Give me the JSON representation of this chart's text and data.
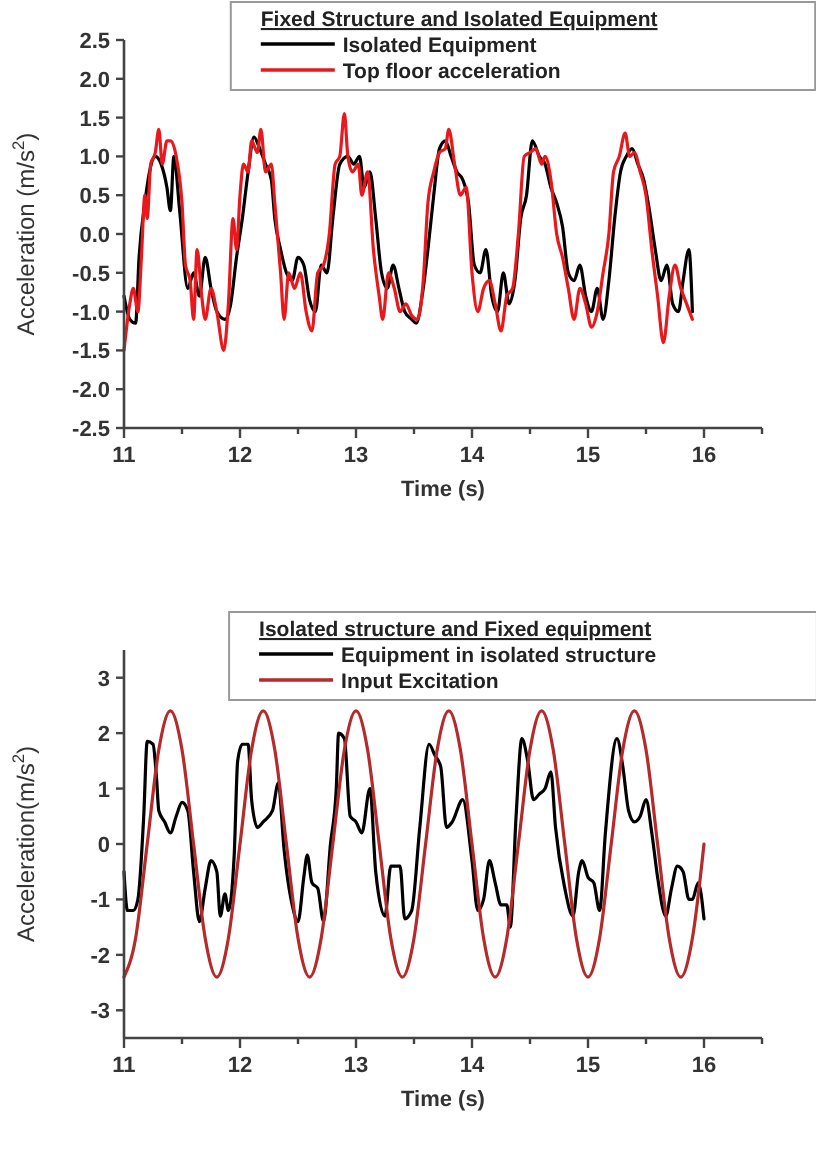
{
  "chart_data": [
    {
      "type": "line",
      "xlabel": "Time (s)",
      "ylabel": "Acceleration (m/s$^{2}$)",
      "legend_title": "Fixed Structure and Isolated Equipment",
      "legend": "top",
      "grid": false,
      "xlim": [
        11,
        16.5
      ],
      "xticks": [
        11,
        {
          "value": 11.5,
          "label": null
        },
        12,
        {
          "value": 12.5,
          "label": null
        },
        13,
        {
          "value": 13.5,
          "label": null
        },
        14,
        {
          "value": 14.5,
          "label": null
        },
        15,
        {
          "value": 15.5,
          "label": null
        },
        16,
        {
          "value": 16.5,
          "label": null
        }
      ],
      "ylim": [
        -2.5,
        2.5
      ],
      "yticks": [
        -2.5,
        {
          "value": -2,
          "label": "-2.0"
        },
        -1.5,
        {
          "value": -1,
          "label": "-1.0"
        },
        -0.5,
        {
          "value": 0,
          "label": "0.0"
        },
        0.5,
        {
          "value": 1,
          "label": "1.0"
        },
        1.5,
        {
          "value": 2,
          "label": "2.0"
        },
        2.5
      ],
      "series": [
        {
          "name": "Isolated Equipment",
          "color": "#000000",
          "x": [
            11.0,
            11.05,
            11.1,
            11.13,
            11.18,
            11.22,
            11.27,
            11.32,
            11.37,
            11.4,
            11.43,
            11.48,
            11.55,
            11.6,
            11.65,
            11.7,
            11.75,
            11.8,
            11.87,
            11.92,
            11.97,
            12.02,
            12.07,
            12.12,
            12.17,
            12.22,
            12.27,
            12.3,
            12.35,
            12.4,
            12.45,
            12.5,
            12.55,
            12.6,
            12.65,
            12.7,
            12.75,
            12.8,
            12.86,
            12.93,
            12.98,
            13.03,
            13.07,
            13.12,
            13.17,
            13.22,
            13.27,
            13.32,
            13.37,
            13.42,
            13.48,
            13.52,
            13.57,
            13.62,
            13.67,
            13.72,
            13.77,
            13.82,
            13.87,
            13.92,
            13.97,
            14.02,
            14.07,
            14.12,
            14.17,
            14.22,
            14.27,
            14.32,
            14.37,
            14.42,
            14.47,
            14.52,
            14.58,
            14.63,
            14.68,
            14.73,
            14.78,
            14.83,
            14.88,
            14.93,
            14.98,
            15.03,
            15.08,
            15.13,
            15.18,
            15.23,
            15.28,
            15.33,
            15.38,
            15.43,
            15.48,
            15.53,
            15.58,
            15.63,
            15.68,
            15.73,
            15.78,
            15.82,
            15.87,
            15.9
          ],
          "values": [
            -0.8,
            -1.1,
            -1.15,
            -0.3,
            0.4,
            0.8,
            1.0,
            0.9,
            0.6,
            0.3,
            1.0,
            0.3,
            -0.7,
            -0.5,
            -0.8,
            -0.3,
            -0.7,
            -1.0,
            -1.1,
            -0.9,
            -0.3,
            0.2,
            0.8,
            1.25,
            1.1,
            0.9,
            0.7,
            0.2,
            -0.2,
            -0.5,
            -0.6,
            -0.3,
            -0.4,
            -0.85,
            -1.0,
            -0.4,
            -0.5,
            0.2,
            0.9,
            1.0,
            0.9,
            1.0,
            0.6,
            0.8,
            0.2,
            -0.5,
            -0.7,
            -0.4,
            -0.7,
            -1.0,
            -1.1,
            -1.15,
            -0.8,
            -0.2,
            0.5,
            1.1,
            1.2,
            1.0,
            0.8,
            0.7,
            0.4,
            -0.4,
            -0.5,
            -0.2,
            -0.8,
            -1.0,
            -0.5,
            -0.9,
            -0.6,
            0.2,
            0.5,
            1.2,
            1.0,
            0.9,
            0.6,
            0.4,
            0.1,
            -0.5,
            -0.6,
            -0.4,
            -0.8,
            -1.0,
            -0.7,
            -1.1,
            -0.6,
            0.2,
            0.8,
            1.0,
            1.1,
            0.9,
            0.7,
            0.3,
            -0.2,
            -0.6,
            -0.4,
            -0.9,
            -1.0,
            -0.6,
            -0.2,
            -1.0
          ]
        },
        {
          "name": "Top floor acceleration",
          "color": "#e8191c",
          "x": [
            11.0,
            11.05,
            11.08,
            11.12,
            11.15,
            11.18,
            11.2,
            11.23,
            11.27,
            11.3,
            11.33,
            11.37,
            11.4,
            11.45,
            11.5,
            11.53,
            11.57,
            11.6,
            11.63,
            11.67,
            11.7,
            11.75,
            11.8,
            11.86,
            11.9,
            11.94,
            11.97,
            12.0,
            12.03,
            12.07,
            12.1,
            12.15,
            12.18,
            12.22,
            12.27,
            12.3,
            12.35,
            12.38,
            12.42,
            12.47,
            12.52,
            12.57,
            12.62,
            12.67,
            12.72,
            12.77,
            12.82,
            12.86,
            12.9,
            12.93,
            12.97,
            13.02,
            13.05,
            13.1,
            13.15,
            13.2,
            13.23,
            13.28,
            13.33,
            13.38,
            13.43,
            13.48,
            13.53,
            13.58,
            13.62,
            13.67,
            13.72,
            13.77,
            13.8,
            13.85,
            13.9,
            13.95,
            14.0,
            14.05,
            14.1,
            14.15,
            14.2,
            14.25,
            14.3,
            14.35,
            14.4,
            14.45,
            14.5,
            14.55,
            14.6,
            14.63,
            14.68,
            14.73,
            14.78,
            14.83,
            14.88,
            14.93,
            14.98,
            15.03,
            15.08,
            15.13,
            15.18,
            15.22,
            15.27,
            15.32,
            15.36,
            15.4,
            15.45,
            15.5,
            15.55,
            15.6,
            15.65,
            15.7,
            15.75,
            15.8,
            15.85,
            15.9
          ],
          "values": [
            -1.5,
            -0.9,
            -0.7,
            -1.0,
            -0.3,
            0.5,
            0.2,
            0.9,
            1.05,
            1.35,
            0.9,
            1.2,
            1.2,
            1.0,
            0.4,
            -0.4,
            -0.6,
            -1.1,
            -0.2,
            -0.8,
            -1.1,
            -0.7,
            -1.0,
            -1.5,
            -0.9,
            0.2,
            -0.2,
            0.5,
            0.9,
            0.8,
            1.2,
            1.05,
            1.35,
            0.8,
            0.9,
            0.4,
            -0.5,
            -1.1,
            -0.5,
            -0.7,
            -0.5,
            -1.0,
            -1.25,
            -0.5,
            -0.4,
            0.0,
            0.9,
            1.0,
            1.55,
            1.0,
            0.8,
            0.9,
            0.5,
            0.8,
            -0.2,
            -0.8,
            -1.1,
            -0.5,
            -0.7,
            -1.0,
            -0.9,
            -1.05,
            -1.1,
            -0.6,
            0.4,
            0.8,
            1.05,
            1.1,
            1.35,
            0.9,
            0.5,
            0.6,
            -0.5,
            -1.0,
            -0.7,
            -0.6,
            -0.9,
            -1.25,
            -0.8,
            -0.7,
            0.0,
            1.0,
            1.05,
            1.1,
            0.9,
            1.0,
            0.7,
            0.0,
            -0.3,
            -0.7,
            -1.1,
            -0.7,
            -0.9,
            -1.2,
            -1.0,
            -0.5,
            0.0,
            0.8,
            1.0,
            1.3,
            1.0,
            1.05,
            0.8,
            0.5,
            -0.2,
            -0.8,
            -1.4,
            -0.8,
            -0.4,
            -0.7,
            -0.9,
            -1.1
          ]
        }
      ]
    },
    {
      "type": "line",
      "xlabel": "Time (s)",
      "ylabel": "Acceleration(m/s$^{2}$)",
      "legend_title": "Isolated structure and Fixed equipment",
      "legend": "top",
      "grid": false,
      "xlim": [
        11,
        16.5
      ],
      "xticks": [
        11,
        {
          "value": 11.5,
          "label": null
        },
        12,
        {
          "value": 12.5,
          "label": null
        },
        13,
        {
          "value": 13.5,
          "label": null
        },
        14,
        {
          "value": 14.5,
          "label": null
        },
        15,
        {
          "value": 15.5,
          "label": null
        },
        16,
        {
          "value": 16.5,
          "label": null
        }
      ],
      "ylim": [
        -3.5,
        3.5
      ],
      "yticks": [
        -3,
        -2,
        -1,
        0,
        1,
        2,
        3
      ],
      "series": [
        {
          "name": "Equipment in isolated structure",
          "color": "#000000",
          "x": [
            11.0,
            11.03,
            11.08,
            11.12,
            11.17,
            11.2,
            11.25,
            11.28,
            11.3,
            11.35,
            11.4,
            11.45,
            11.5,
            11.55,
            11.6,
            11.65,
            11.7,
            11.75,
            11.8,
            11.83,
            11.87,
            11.9,
            11.95,
            11.98,
            12.02,
            12.07,
            12.1,
            12.15,
            12.2,
            12.28,
            12.33,
            12.38,
            12.45,
            12.5,
            12.55,
            12.58,
            12.62,
            12.67,
            12.72,
            12.78,
            12.83,
            12.85,
            12.9,
            12.95,
            13.0,
            13.05,
            13.12,
            13.17,
            13.25,
            13.3,
            13.38,
            13.42,
            13.48,
            13.55,
            13.63,
            13.68,
            13.73,
            13.78,
            13.83,
            13.92,
            14.0,
            14.05,
            14.1,
            14.15,
            14.2,
            14.25,
            14.3,
            14.33,
            14.38,
            14.43,
            14.48,
            14.53,
            14.58,
            14.63,
            14.68,
            14.72,
            14.8,
            14.87,
            14.92,
            14.95,
            15.0,
            15.05,
            15.1,
            15.15,
            15.25,
            15.3,
            15.35,
            15.4,
            15.45,
            15.5,
            15.55,
            15.6,
            15.67,
            15.72,
            15.77,
            15.82,
            15.87,
            15.9,
            15.95,
            16.0
          ],
          "values": [
            -0.5,
            -1.2,
            -1.2,
            -1.0,
            0.5,
            1.85,
            1.8,
            1.2,
            0.6,
            0.4,
            0.2,
            0.5,
            0.75,
            0.6,
            -0.5,
            -1.4,
            -0.8,
            -0.3,
            -0.5,
            -1.3,
            -0.9,
            -1.2,
            -0.2,
            1.5,
            1.8,
            1.8,
            0.8,
            0.3,
            0.4,
            0.6,
            1.1,
            -0.1,
            -1.1,
            -1.4,
            -0.6,
            -0.2,
            -0.7,
            -0.8,
            -1.4,
            0.0,
            1.0,
            2.0,
            1.9,
            0.5,
            0.4,
            0.2,
            1.0,
            -0.5,
            -1.3,
            -0.4,
            -0.4,
            -1.35,
            -1.2,
            0.3,
            1.8,
            1.6,
            1.4,
            0.3,
            0.4,
            0.8,
            -0.3,
            -1.2,
            -1.0,
            -0.3,
            -0.7,
            -1.1,
            -1.1,
            -1.5,
            0.5,
            1.9,
            1.5,
            0.8,
            0.9,
            1.0,
            1.3,
            0.3,
            -0.8,
            -1.3,
            -0.5,
            -0.3,
            -0.6,
            -0.7,
            -1.2,
            0.2,
            1.9,
            1.4,
            0.6,
            0.4,
            0.5,
            0.8,
            0.2,
            -0.6,
            -1.3,
            -0.8,
            -0.4,
            -0.5,
            -1.0,
            -1.0,
            -0.7,
            -1.35
          ]
        },
        {
          "name": "Input Excitation",
          "color": "#b52a2a",
          "x": [
            11.0,
            11.1,
            11.2,
            11.3,
            11.4,
            11.5,
            11.6,
            11.7,
            11.8,
            11.9,
            12.0,
            12.1,
            12.2,
            12.3,
            12.4,
            12.5,
            12.6,
            12.7,
            12.8,
            12.9,
            13.0,
            13.1,
            13.2,
            13.3,
            13.4,
            13.5,
            13.6,
            13.7,
            13.8,
            13.9,
            14.0,
            14.1,
            14.2,
            14.3,
            14.4,
            14.5,
            14.6,
            14.7,
            14.8,
            14.9,
            15.0,
            15.1,
            15.2,
            15.3,
            15.4,
            15.5,
            15.6,
            15.7,
            15.8,
            15.9,
            16.0
          ],
          "values": [
            -2.4,
            -1.7,
            0,
            1.7,
            2.4,
            1.7,
            0,
            -1.7,
            -2.4,
            -1.7,
            0,
            1.7,
            2.4,
            1.7,
            0,
            -1.7,
            -2.4,
            -1.7,
            0,
            1.7,
            2.4,
            1.7,
            0,
            -1.7,
            -2.4,
            -1.7,
            0,
            1.7,
            2.4,
            1.7,
            0,
            -1.7,
            -2.4,
            -1.7,
            0,
            1.7,
            2.4,
            1.7,
            0,
            -1.7,
            -2.4,
            -1.7,
            0,
            1.7,
            2.4,
            1.7,
            0,
            -1.7,
            -2.4,
            -1.7,
            0
          ]
        }
      ]
    }
  ]
}
